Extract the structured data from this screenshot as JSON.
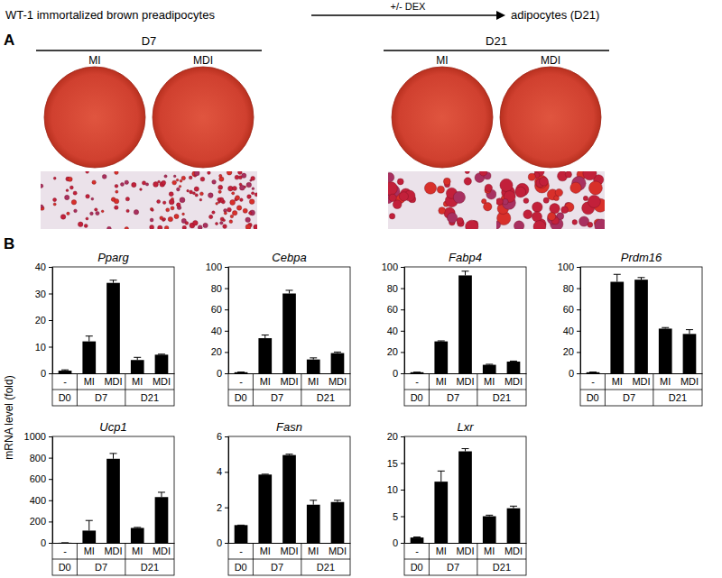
{
  "header": {
    "left": "WT-1 immortalized brown preadipocytes",
    "arrow_label": "+/- DEX",
    "right": "adipocytes (D21)"
  },
  "panel_a": {
    "label": "A",
    "groups": [
      {
        "label": "D7",
        "conditions": [
          "MI",
          "MDI"
        ]
      },
      {
        "label": "D21",
        "conditions": [
          "MI",
          "MDI"
        ]
      }
    ]
  },
  "panel_b": {
    "label": "B",
    "ylabel": "mRNA level (fold)"
  },
  "chart_data": [
    {
      "type": "bar",
      "title": "Pparg",
      "categories": [
        "-",
        "MI",
        "MDI",
        "MI",
        "MDI"
      ],
      "groups": [
        {
          "label": "D0",
          "size": 1
        },
        {
          "label": "D7",
          "size": 2
        },
        {
          "label": "D21",
          "size": 2
        }
      ],
      "values": [
        1,
        12,
        34,
        5,
        7
      ],
      "errors": [
        0.3,
        2,
        1,
        1,
        0.2
      ],
      "color": "#000000",
      "ylim": [
        0,
        40
      ],
      "yticks": [
        0,
        10,
        20,
        30,
        40
      ]
    },
    {
      "type": "bar",
      "title": "Cebpa",
      "categories": [
        "-",
        "MI",
        "MDI",
        "MI",
        "MDI"
      ],
      "groups": [
        {
          "label": "D0",
          "size": 1
        },
        {
          "label": "D7",
          "size": 2
        },
        {
          "label": "D21",
          "size": 2
        }
      ],
      "values": [
        1,
        33,
        75,
        13,
        19
      ],
      "errors": [
        0.2,
        3,
        3,
        1.5,
        1
      ],
      "color": "#000000",
      "ylim": [
        0,
        100
      ],
      "yticks": [
        0,
        20,
        40,
        60,
        80,
        100
      ]
    },
    {
      "type": "bar",
      "title": "Fabp4",
      "categories": [
        "-",
        "MI",
        "MDI",
        "MI",
        "MDI"
      ],
      "groups": [
        {
          "label": "D0",
          "size": 1
        },
        {
          "label": "D7",
          "size": 2
        },
        {
          "label": "D21",
          "size": 2
        }
      ],
      "values": [
        1,
        30,
        92,
        8,
        11
      ],
      "errors": [
        0.1,
        0.5,
        4,
        0.5,
        0.5
      ],
      "color": "#000000",
      "ylim": [
        0,
        100
      ],
      "yticks": [
        0,
        20,
        40,
        60,
        80,
        100
      ]
    },
    {
      "type": "bar",
      "title": "Prdm16",
      "categories": [
        "-",
        "MI",
        "MDI",
        "MI",
        "MDI"
      ],
      "groups": [
        {
          "label": "D0",
          "size": 1
        },
        {
          "label": "D7",
          "size": 2
        },
        {
          "label": "D21",
          "size": 2
        }
      ],
      "values": [
        1,
        86,
        88,
        42,
        37
      ],
      "errors": [
        0.2,
        7,
        2,
        1,
        4
      ],
      "color": "#000000",
      "ylim": [
        0,
        100
      ],
      "yticks": [
        0,
        20,
        40,
        60,
        80,
        100
      ]
    },
    {
      "type": "bar",
      "title": "Ucp1",
      "categories": [
        "-",
        "MI",
        "MDI",
        "MI",
        "MDI"
      ],
      "groups": [
        {
          "label": "D0",
          "size": 1
        },
        {
          "label": "D7",
          "size": 2
        },
        {
          "label": "D21",
          "size": 2
        }
      ],
      "values": [
        1,
        115,
        790,
        140,
        430
      ],
      "errors": [
        0,
        95,
        50,
        5,
        45
      ],
      "color": "#000000",
      "ylim": [
        0,
        1000
      ],
      "yticks": [
        0,
        200,
        400,
        600,
        800,
        1000
      ]
    },
    {
      "type": "bar",
      "title": "Fasn",
      "categories": [
        "-",
        "MI",
        "MDI",
        "MI",
        "MDI"
      ],
      "groups": [
        {
          "label": "D0",
          "size": 1
        },
        {
          "label": "D7",
          "size": 2
        },
        {
          "label": "D21",
          "size": 2
        }
      ],
      "values": [
        1,
        3.85,
        4.95,
        2.15,
        2.3
      ],
      "errors": [
        0,
        0.02,
        0.05,
        0.25,
        0.1
      ],
      "color": "#000000",
      "ylim": [
        0,
        6
      ],
      "yticks": [
        0,
        2,
        4,
        6
      ]
    },
    {
      "type": "bar",
      "title": "Lxr",
      "categories": [
        "-",
        "MI",
        "MDI",
        "MI",
        "MDI"
      ],
      "groups": [
        {
          "label": "D0",
          "size": 1
        },
        {
          "label": "D7",
          "size": 2
        },
        {
          "label": "D21",
          "size": 2
        }
      ],
      "values": [
        1,
        11.5,
        17.2,
        5,
        6.5
      ],
      "errors": [
        0.1,
        2,
        0.5,
        0.2,
        0.4
      ],
      "color": "#000000",
      "ylim": [
        0,
        20
      ],
      "yticks": [
        0,
        5,
        10,
        15,
        20
      ]
    }
  ]
}
